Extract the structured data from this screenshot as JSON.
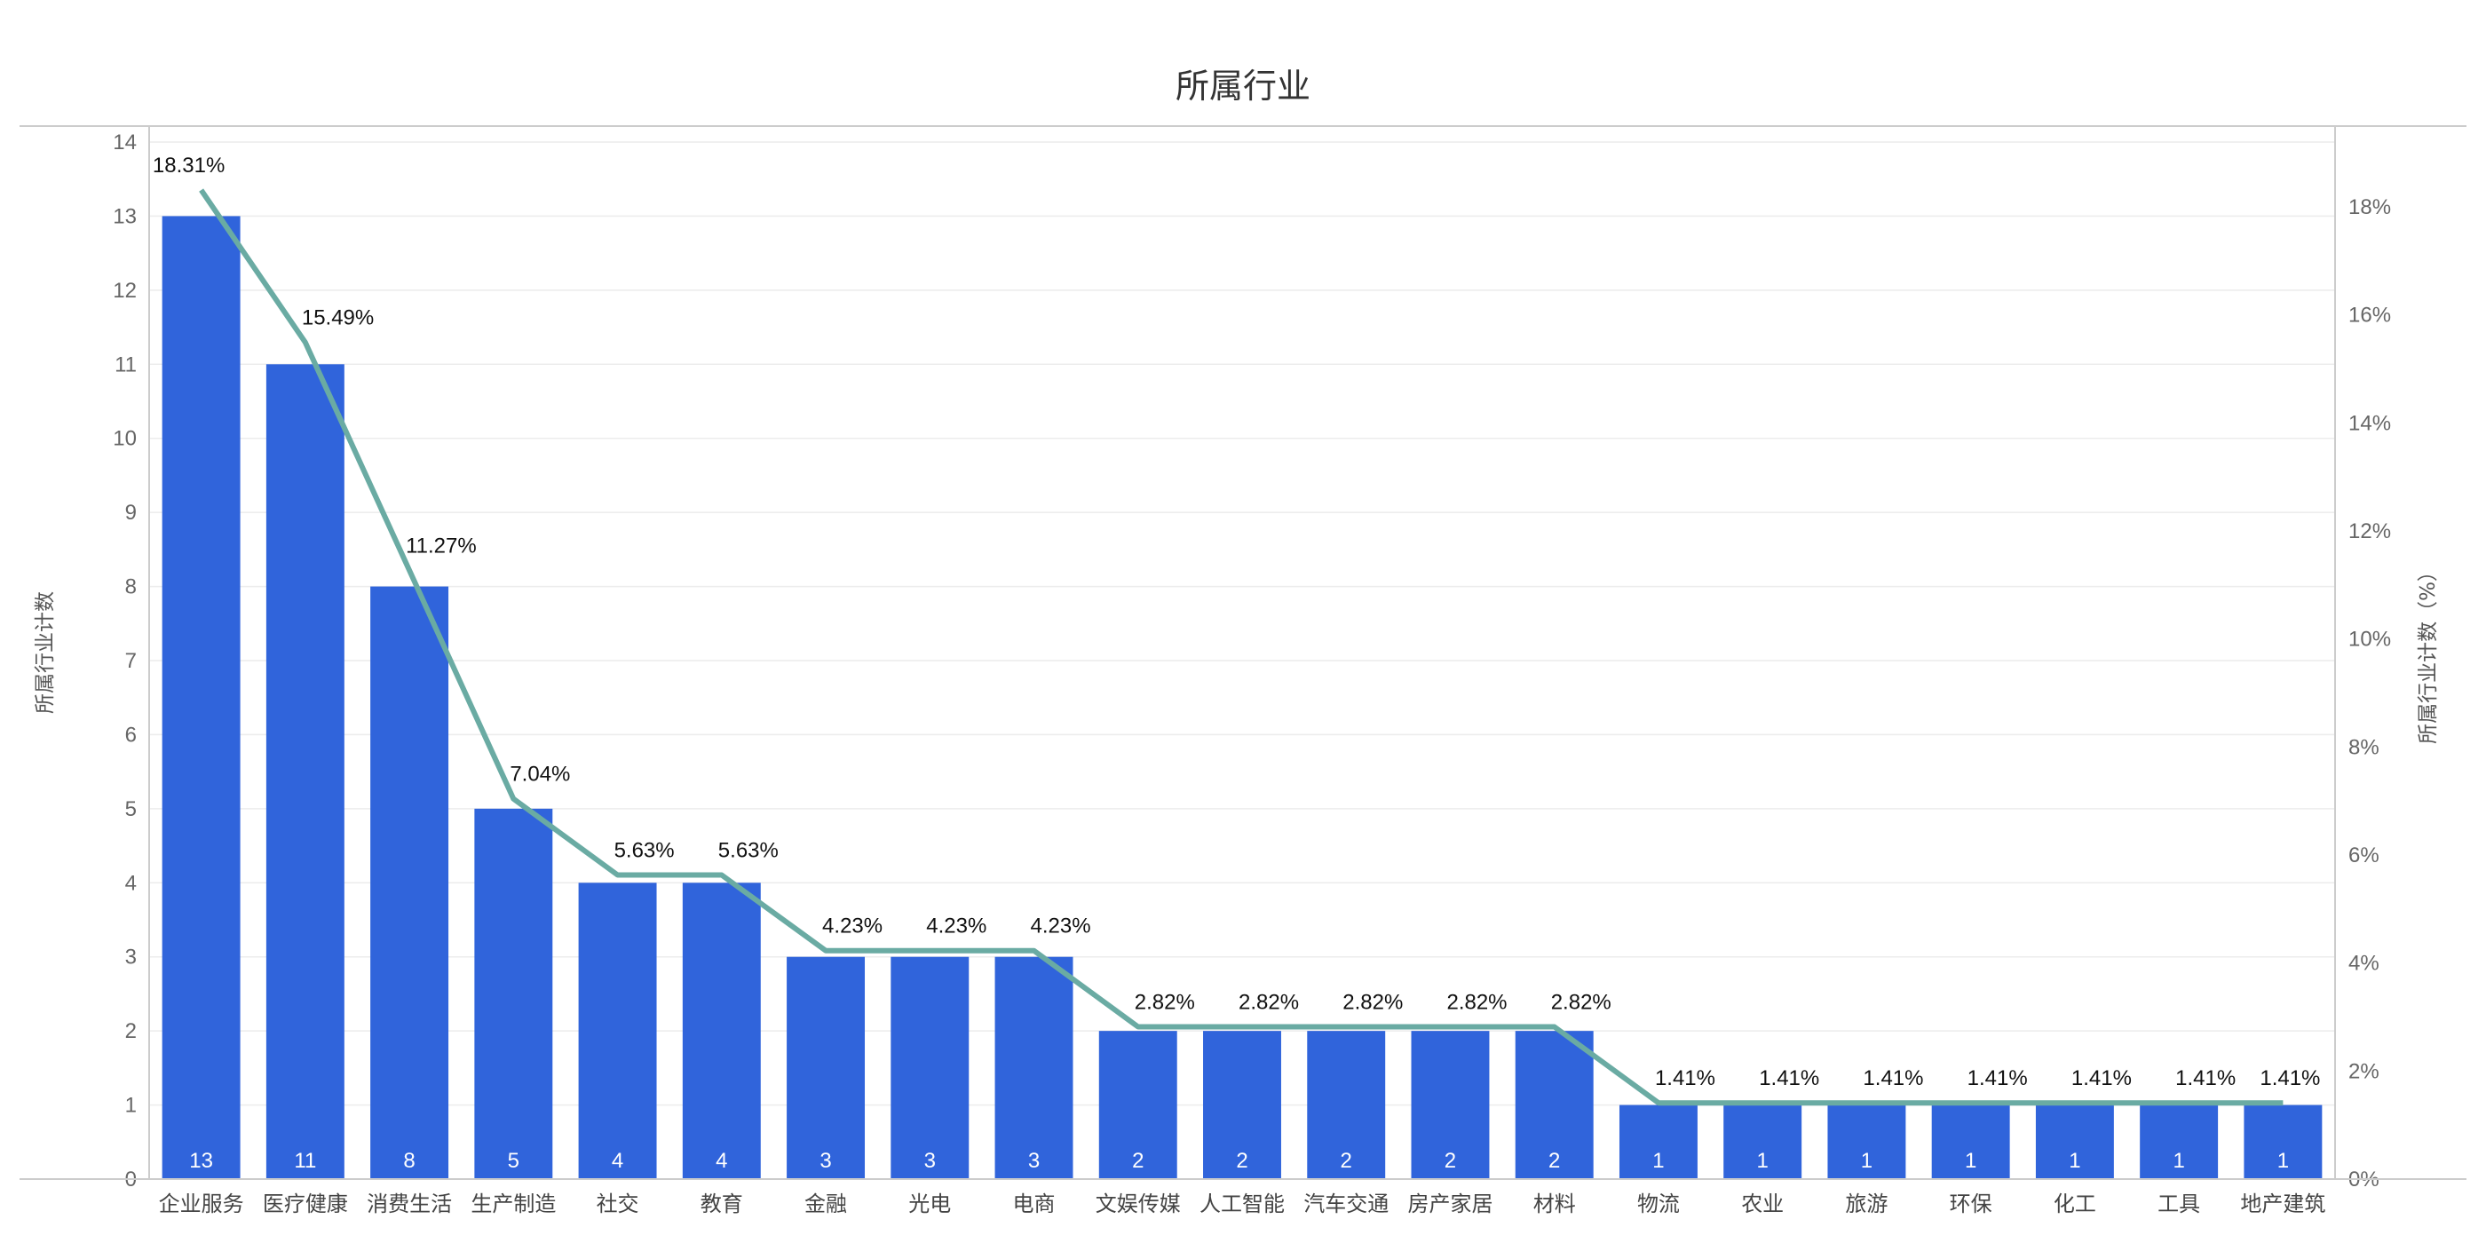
{
  "chart_data": {
    "type": "bar",
    "title": "所属行业",
    "ylabel": "所属行业计数",
    "y2label": "所属行业计数（%）",
    "categories": [
      "企业服务",
      "医疗健康",
      "消费生活",
      "生产制造",
      "社交",
      "教育",
      "金融",
      "光电",
      "电商",
      "文娱传媒",
      "人工智能",
      "汽车交通",
      "房产家居",
      "材料",
      "物流",
      "农业",
      "旅游",
      "环保",
      "化工",
      "工具",
      "地产建筑"
    ],
    "values": [
      13,
      11,
      8,
      5,
      4,
      4,
      3,
      3,
      3,
      2,
      2,
      2,
      2,
      2,
      1,
      1,
      1,
      1,
      1,
      1,
      1
    ],
    "percent_line": {
      "values": [
        18.31,
        15.49,
        11.27,
        7.04,
        5.63,
        5.63,
        4.23,
        4.23,
        4.23,
        2.82,
        2.82,
        2.82,
        2.82,
        2.82,
        1.41,
        1.41,
        1.41,
        1.41,
        1.41,
        1.41,
        1.41
      ],
      "labels": [
        "18.31%",
        "15.49%",
        "11.27%",
        "7.04%",
        "5.63%",
        "5.63%",
        "4.23%",
        "4.23%",
        "4.23%",
        "2.82%",
        "2.82%",
        "2.82%",
        "2.82%",
        "2.82%",
        "1.41%",
        "1.41%",
        "1.41%",
        "1.41%",
        "1.41%",
        "1.41%",
        "1.41%"
      ],
      "visible_labels": [
        true,
        true,
        true,
        true,
        true,
        true,
        true,
        true,
        true,
        true,
        true,
        true,
        true,
        true,
        true,
        true,
        true,
        true,
        true,
        true,
        true
      ]
    },
    "ylim": [
      0,
      14
    ],
    "yticks": [
      "0",
      "1",
      "2",
      "3",
      "4",
      "5",
      "6",
      "7",
      "8",
      "9",
      "10",
      "11",
      "12",
      "13",
      "14"
    ],
    "y2lim": [
      0,
      19.2
    ],
    "y2ticks": [
      "0%",
      "2%",
      "4%",
      "6%",
      "8%",
      "10%",
      "12%",
      "14%",
      "16%",
      "18%"
    ],
    "grid": true,
    "colors": {
      "bar": "#3064db",
      "line": "#6aaba3"
    }
  }
}
